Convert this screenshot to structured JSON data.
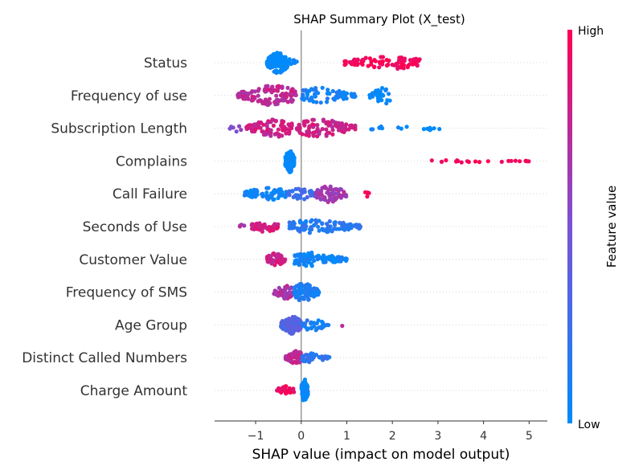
{
  "chart_data": {
    "type": "scatter",
    "title": "SHAP Summary Plot (X_test)",
    "xlabel": "SHAP value (impact on model output)",
    "xlim": [
      -1.9,
      5.4
    ],
    "xticks": [
      "−1",
      "0",
      "1",
      "2",
      "3",
      "4",
      "5"
    ],
    "xtick_values": [
      -1,
      0,
      1,
      2,
      3,
      4,
      5
    ],
    "features": [
      {
        "name": "Status",
        "groups": [
          {
            "min": -0.75,
            "max": -0.3,
            "center": -0.5,
            "n": 120,
            "color": 0.0,
            "spread": 1.0
          },
          {
            "min": -0.3,
            "max": 0.0,
            "center": -0.2,
            "n": 10,
            "color": 0.0,
            "spread": 0.5
          },
          {
            "min": 0.95,
            "max": 2.6,
            "center": 1.9,
            "n": 90,
            "color": 0.98,
            "spread": 0.6
          }
        ]
      },
      {
        "name": "Frequency of use",
        "groups": [
          {
            "min": -1.4,
            "max": -0.1,
            "center": -0.6,
            "n": 110,
            "color": 0.75,
            "spread": 0.9
          },
          {
            "min": 0.0,
            "max": 1.2,
            "center": 0.4,
            "n": 70,
            "color": 0.1,
            "spread": 0.7
          },
          {
            "min": 1.5,
            "max": 1.95,
            "center": 1.8,
            "n": 35,
            "color": 0.0,
            "spread": 0.8
          }
        ]
      },
      {
        "name": "Subscription  Length",
        "groups": [
          {
            "min": -1.6,
            "max": -1.2,
            "center": -1.4,
            "n": 6,
            "color": 0.55,
            "spread": 0.3
          },
          {
            "min": -1.2,
            "max": -0.2,
            "center": -0.6,
            "n": 90,
            "color": 0.8,
            "spread": 0.8
          },
          {
            "min": -0.1,
            "max": 1.2,
            "center": 0.4,
            "n": 90,
            "color": 0.8,
            "spread": 0.8
          },
          {
            "min": 1.5,
            "max": 3.1,
            "center": 2.3,
            "n": 16,
            "color": 0.0,
            "spread": 0.25
          }
        ]
      },
      {
        "name": "Complains",
        "groups": [
          {
            "min": -0.35,
            "max": -0.15,
            "center": -0.25,
            "n": 80,
            "color": 0.0,
            "spread": 1.0
          },
          {
            "min": 2.75,
            "max": 5.05,
            "center": 3.4,
            "n": 22,
            "color": 0.98,
            "spread": 0.15
          }
        ]
      },
      {
        "name": "Call  Failure",
        "groups": [
          {
            "min": -1.25,
            "max": -0.3,
            "center": -0.7,
            "n": 70,
            "color": 0.05,
            "spread": 0.6
          },
          {
            "min": -0.3,
            "max": 0.4,
            "center": 0.0,
            "n": 40,
            "color": 0.25,
            "spread": 0.5
          },
          {
            "min": 0.3,
            "max": 1.0,
            "center": 0.6,
            "n": 70,
            "color": 0.65,
            "spread": 0.8
          },
          {
            "min": 1.4,
            "max": 1.5,
            "center": 1.45,
            "n": 5,
            "color": 0.98,
            "spread": 0.3
          }
        ]
      },
      {
        "name": "Seconds of Use",
        "groups": [
          {
            "min": -1.5,
            "max": -1.2,
            "center": -1.35,
            "n": 4,
            "color": 0.7,
            "spread": 0.2
          },
          {
            "min": -1.1,
            "max": -0.5,
            "center": -0.8,
            "n": 45,
            "color": 0.85,
            "spread": 0.5
          },
          {
            "min": -0.3,
            "max": 1.3,
            "center": 0.3,
            "n": 110,
            "color": 0.15,
            "spread": 0.6
          }
        ]
      },
      {
        "name": "Customer Value",
        "groups": [
          {
            "min": -0.75,
            "max": -0.35,
            "center": -0.55,
            "n": 55,
            "color": 0.8,
            "spread": 0.6
          },
          {
            "min": -0.15,
            "max": 1.0,
            "center": 0.2,
            "n": 110,
            "color": 0.05,
            "spread": 0.6
          }
        ]
      },
      {
        "name": "Frequency of SMS",
        "groups": [
          {
            "min": -0.6,
            "max": -0.1,
            "center": -0.35,
            "n": 50,
            "color": 0.7,
            "spread": 0.6
          },
          {
            "min": -0.15,
            "max": 0.4,
            "center": 0.05,
            "n": 110,
            "color": 0.1,
            "spread": 0.8
          }
        ]
      },
      {
        "name": "Age Group",
        "groups": [
          {
            "min": -0.45,
            "max": 0.0,
            "center": -0.2,
            "n": 130,
            "color": 0.35,
            "spread": 0.8
          },
          {
            "min": 0.0,
            "max": 0.6,
            "center": 0.25,
            "n": 30,
            "color": 0.1,
            "spread": 0.5
          },
          {
            "min": 0.9,
            "max": 0.9,
            "center": 0.9,
            "n": 1,
            "color": 0.7,
            "spread": 0.1
          }
        ]
      },
      {
        "name": "Distinct Called Numbers",
        "groups": [
          {
            "min": -0.35,
            "max": 0.0,
            "center": -0.1,
            "n": 80,
            "color": 0.75,
            "spread": 0.6
          },
          {
            "min": 0.0,
            "max": 0.65,
            "center": 0.2,
            "n": 40,
            "color": 0.2,
            "spread": 0.4
          }
        ]
      },
      {
        "name": "Charge  Amount",
        "groups": [
          {
            "min": -0.55,
            "max": -0.15,
            "center": -0.35,
            "n": 30,
            "color": 0.95,
            "spread": 0.4
          },
          {
            "min": 0.0,
            "max": 0.15,
            "center": 0.07,
            "n": 80,
            "color": 0.0,
            "spread": 1.0
          }
        ]
      }
    ],
    "colorbar": {
      "label": "Feature value",
      "high": "High",
      "low": "Low",
      "low_color": "#008bfb",
      "high_color": "#ff0052"
    },
    "zero_line_color": "#999999",
    "grid": false
  }
}
